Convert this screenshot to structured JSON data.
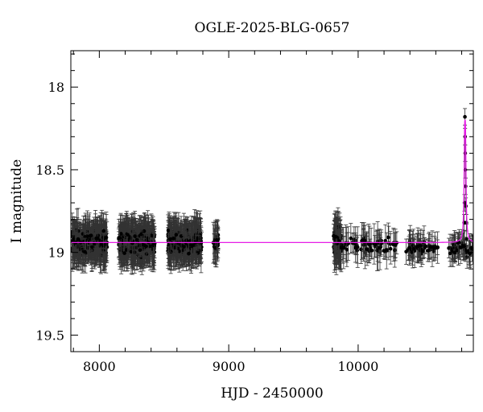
{
  "chart_data": {
    "type": "scatter",
    "title": "OGLE-2025-BLG-0657",
    "xlabel": "HJD - 2450000",
    "ylabel": "I magnitude",
    "xlim": [
      7780,
      10890
    ],
    "ylim": [
      19.6,
      17.78
    ],
    "y_inverted": true,
    "xticks": [
      8000,
      9000,
      10000
    ],
    "yticks": [
      18,
      18.5,
      19,
      19.5
    ],
    "xtick_labels": [
      "8000",
      "9000",
      "10000"
    ],
    "ytick_labels": [
      "18",
      "18.5",
      "19",
      "19.5"
    ],
    "grid": false,
    "legend": "none",
    "colors": {
      "data": "#000000",
      "model": "#e61ee6"
    },
    "baseline_mag": 18.94,
    "series": [
      {
        "kind": "points_with_errorbars",
        "seasons": [
          {
            "start": 7790,
            "end": 8060,
            "mean": 18.94,
            "scatter": 0.08,
            "err": 0.1,
            "n": 340
          },
          {
            "start": 8150,
            "end": 8430,
            "mean": 18.94,
            "scatter": 0.08,
            "err": 0.1,
            "n": 340
          },
          {
            "start": 8530,
            "end": 8790,
            "mean": 18.94,
            "scatter": 0.08,
            "err": 0.1,
            "n": 320
          },
          {
            "start": 8880,
            "end": 8920,
            "mean": 18.94,
            "scatter": 0.07,
            "err": 0.09,
            "n": 30
          },
          {
            "start": 9810,
            "end": 9870,
            "mean": 18.94,
            "scatter": 0.08,
            "err": 0.11,
            "n": 80
          },
          {
            "start": 9880,
            "end": 10300,
            "mean": 18.96,
            "scatter": 0.06,
            "err": 0.09,
            "n": 70
          },
          {
            "start": 10370,
            "end": 10620,
            "mean": 18.97,
            "scatter": 0.05,
            "err": 0.08,
            "n": 55
          },
          {
            "start": 10700,
            "end": 10890,
            "mean": 18.97,
            "scatter": 0.05,
            "err": 0.07,
            "n": 55
          }
        ],
        "peak_points": [
          {
            "x": 10825,
            "y": 18.18
          },
          {
            "x": 10826,
            "y": 18.3
          },
          {
            "x": 10827,
            "y": 18.4
          },
          {
            "x": 10828,
            "y": 18.5
          },
          {
            "x": 10830,
            "y": 18.6
          },
          {
            "x": 10832,
            "y": 18.72
          },
          {
            "x": 10836,
            "y": 18.82
          },
          {
            "x": 10822,
            "y": 18.7
          },
          {
            "x": 10819,
            "y": 18.82
          }
        ]
      },
      {
        "kind": "model_curve",
        "peak_x": 10826,
        "peak_mag": 18.2,
        "width": 6
      }
    ]
  }
}
